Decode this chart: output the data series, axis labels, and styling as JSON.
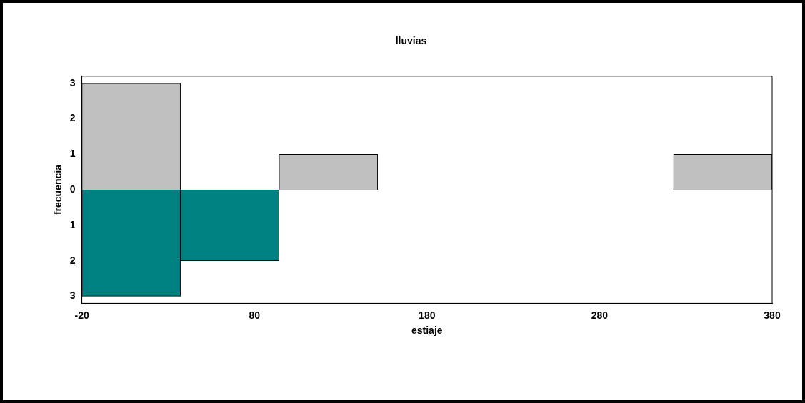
{
  "chart_data": {
    "type": "histogram",
    "title": "lluvias",
    "xlabel": "estiaje",
    "ylabel": "frecuencia",
    "bins": [
      -20,
      37.14,
      94.29,
      151.43,
      208.57,
      265.71,
      322.86,
      380
    ],
    "series": [
      {
        "color": "#c0c0c0",
        "values": [
          3,
          0,
          1,
          0,
          0,
          0,
          1
        ]
      },
      {
        "color": "#008080",
        "values": [
          -3,
          -2,
          0,
          0,
          0,
          0,
          0
        ]
      }
    ],
    "xlim": [
      -20,
      380
    ],
    "xticks": [
      -20,
      80,
      180,
      280,
      380
    ],
    "ylim": [
      -3.2,
      3.2
    ],
    "yticks": [
      {
        "value": -3,
        "label": "3"
      },
      {
        "value": -2,
        "label": "2"
      },
      {
        "value": -1,
        "label": "1"
      },
      0,
      1,
      2,
      3
    ],
    "grid": false,
    "legend": false
  }
}
